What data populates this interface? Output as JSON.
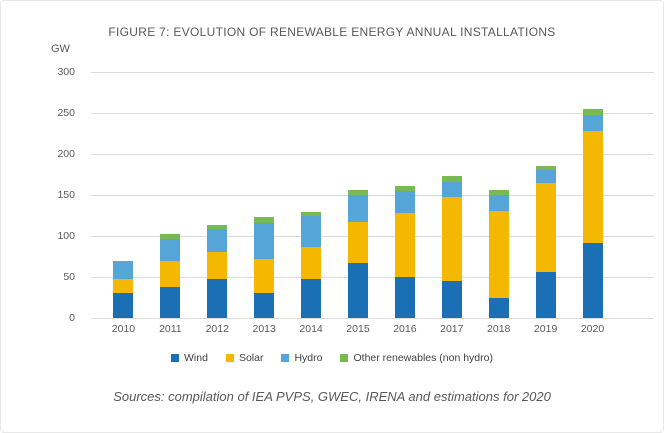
{
  "chart": {
    "title": "FIGURE 7: EVOLUTION OF RENEWABLE ENERGY ANNUAL INSTALLATIONS",
    "unit_label": "GW",
    "sources": "Sources: compilation of IEA PVPS, GWEC, IRENA and estimations for 2020"
  },
  "colors": {
    "title_text": "#595959",
    "axis_text": "#595959",
    "legend_text": "#404040",
    "gridline": "#dcdcdc",
    "wind": "#1B6FB5",
    "solar": "#F5B800",
    "hydro": "#55A5D8",
    "other": "#79B952"
  },
  "chart_data": {
    "type": "bar",
    "stacked": true,
    "title": "FIGURE 7: EVOLUTION OF RENEWABLE ENERGY ANNUAL INSTALLATIONS",
    "xlabel": "",
    "ylabel": "GW",
    "ylim": [
      0,
      300
    ],
    "yticks": [
      0,
      50,
      100,
      150,
      200,
      250,
      300
    ],
    "grid": true,
    "legend_position": "bottom",
    "categories": [
      "2010",
      "2011",
      "2012",
      "2013",
      "2014",
      "2015",
      "2016",
      "2017",
      "2018",
      "2019",
      "2020"
    ],
    "series": [
      {
        "name": "Wind",
        "color": "#1B6FB5",
        "values": [
          30,
          38,
          48,
          31,
          48,
          67,
          50,
          45,
          25,
          56,
          91
        ]
      },
      {
        "name": "Solar",
        "color": "#F5B800",
        "values": [
          17,
          32,
          33,
          41,
          38,
          50,
          78,
          103,
          105,
          109,
          137
        ]
      },
      {
        "name": "Hydro",
        "color": "#55A5D8",
        "values": [
          23,
          26,
          28,
          44,
          38,
          33,
          27,
          18,
          20,
          15,
          20
        ]
      },
      {
        "name": "Other renewables (non hydro)",
        "color": "#79B952",
        "values": [
          0,
          6,
          5,
          7,
          5,
          6,
          6,
          7,
          6,
          6,
          7
        ]
      }
    ]
  }
}
